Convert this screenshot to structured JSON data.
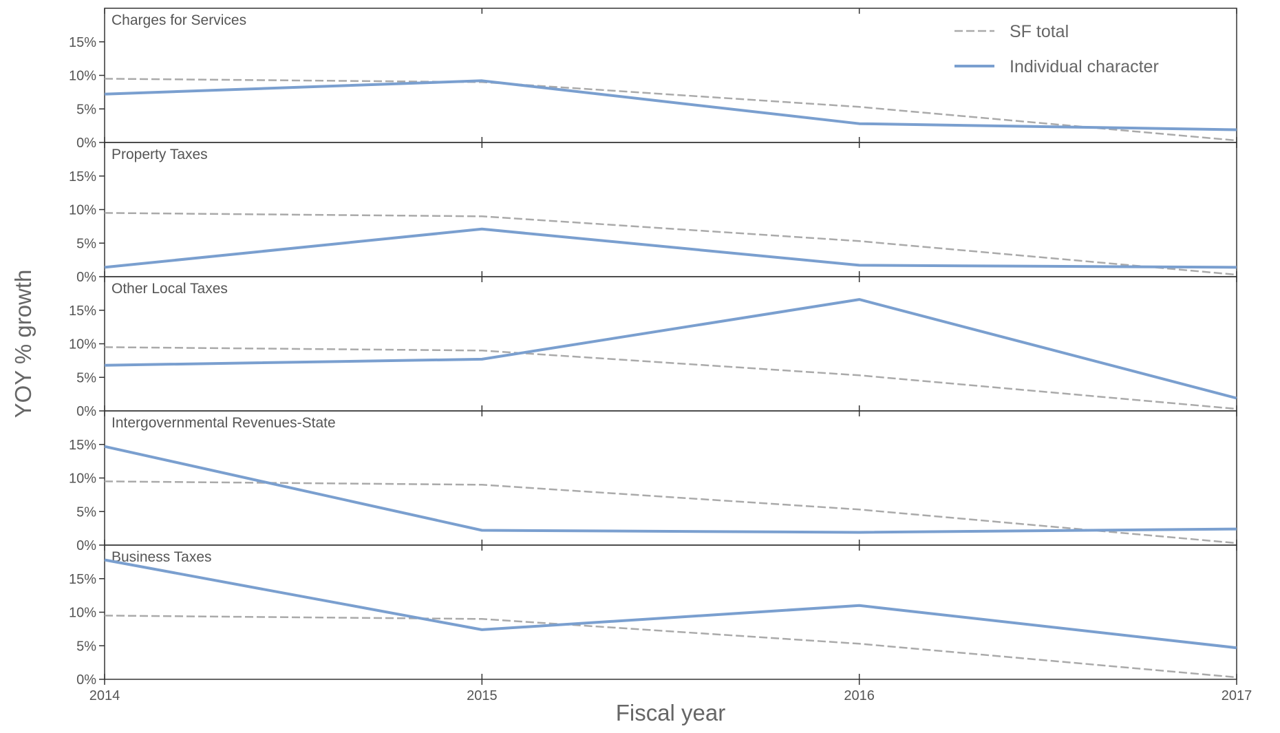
{
  "chart_data": {
    "type": "line",
    "xlabel": "Fiscal year",
    "ylabel": "YOY % growth",
    "x": [
      "2014",
      "2015",
      "2016",
      "2017"
    ],
    "ylim": [
      0,
      20
    ],
    "y_ticks": [
      "0%",
      "5%",
      "10%",
      "15%"
    ],
    "grid": false,
    "legend_position": "top-right",
    "legend": [
      {
        "label": "SF total",
        "style": "dashed",
        "color": "#aaaaaa"
      },
      {
        "label": "Individual character",
        "style": "solid",
        "color": "#7a9fcf"
      }
    ],
    "panels": [
      {
        "title": "Charges for Services",
        "series": [
          {
            "name": "SF total",
            "values": [
              9.5,
              9.0,
              5.3,
              0.3
            ]
          },
          {
            "name": "Individual character",
            "values": [
              7.2,
              9.2,
              2.8,
              1.9
            ]
          }
        ]
      },
      {
        "title": "Property Taxes",
        "series": [
          {
            "name": "SF total",
            "values": [
              9.5,
              9.0,
              5.3,
              0.3
            ]
          },
          {
            "name": "Individual character",
            "values": [
              1.4,
              7.1,
              1.7,
              1.4
            ]
          }
        ]
      },
      {
        "title": "Other Local Taxes",
        "series": [
          {
            "name": "SF total",
            "values": [
              9.5,
              9.0,
              5.3,
              0.3
            ]
          },
          {
            "name": "Individual character",
            "values": [
              6.8,
              7.7,
              16.6,
              1.9
            ]
          }
        ]
      },
      {
        "title": "Intergovernmental Revenues-State",
        "series": [
          {
            "name": "SF total",
            "values": [
              9.5,
              9.0,
              5.3,
              0.3
            ]
          },
          {
            "name": "Individual character",
            "values": [
              14.7,
              2.2,
              1.9,
              2.4
            ]
          }
        ]
      },
      {
        "title": "Business Taxes",
        "series": [
          {
            "name": "SF total",
            "values": [
              9.5,
              9.0,
              5.3,
              0.3
            ]
          },
          {
            "name": "Individual character",
            "values": [
              17.8,
              7.4,
              11.0,
              4.7
            ]
          }
        ]
      }
    ]
  }
}
